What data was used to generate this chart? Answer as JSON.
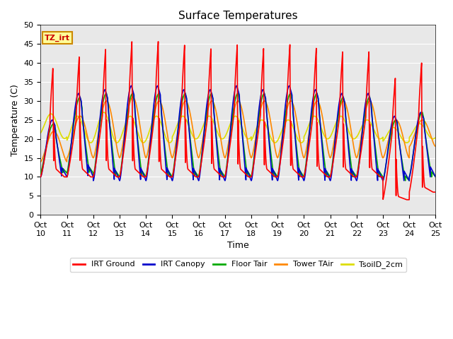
{
  "title": "Surface Temperatures",
  "xlabel": "Time",
  "ylabel": "Temperature (C)",
  "xlim": [
    0,
    150
  ],
  "ylim": [
    0,
    50
  ],
  "yticks": [
    0,
    5,
    10,
    15,
    20,
    25,
    30,
    35,
    40,
    45,
    50
  ],
  "xtick_labels": [
    "Oct 10",
    "Oct 11",
    "Oct 12",
    "Oct 13",
    "Oct 14",
    "Oct 15",
    "Oct 16",
    "Oct 17",
    "Oct 18",
    "Oct 19",
    "Oct 20",
    "Oct 21",
    "Oct 22",
    "Oct 23",
    "Oct 24",
    "Oct 25"
  ],
  "annotation_text": "TZ_irt",
  "annotation_bg": "#ffff99",
  "annotation_border": "#cc8800",
  "series": {
    "IRT Ground": {
      "color": "#ff0000",
      "lw": 1.2
    },
    "IRT Canopy": {
      "color": "#0000cc",
      "lw": 1.2
    },
    "Floor Tair": {
      "color": "#00aa00",
      "lw": 1.2
    },
    "Tower TAir": {
      "color": "#ff8800",
      "lw": 1.2
    },
    "TsoilD_2cm": {
      "color": "#dddd00",
      "lw": 1.2
    }
  },
  "bg_color": "#e8e8e8",
  "title_fontsize": 11,
  "axis_fontsize": 9,
  "tick_fontsize": 8
}
